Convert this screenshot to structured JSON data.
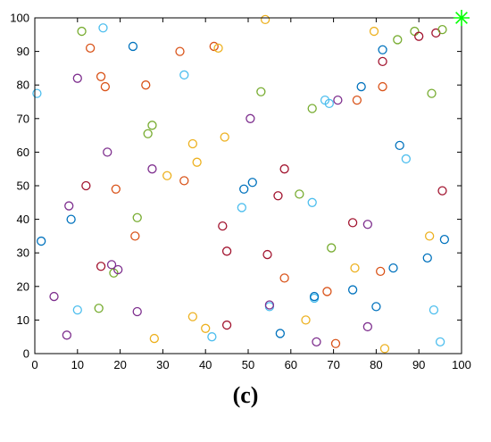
{
  "caption": "(c)",
  "chart_data": {
    "type": "scatter",
    "title": "",
    "xlabel": "",
    "ylabel": "",
    "xlim": [
      0,
      100
    ],
    "ylim": [
      0,
      100
    ],
    "xticks": [
      0,
      10,
      20,
      30,
      40,
      50,
      60,
      70,
      80,
      90,
      100
    ],
    "yticks": [
      0,
      10,
      20,
      30,
      40,
      50,
      60,
      70,
      80,
      90,
      100
    ],
    "grid": false,
    "marker": "open-circle",
    "palette": [
      "#0072BD",
      "#D95319",
      "#EDB120",
      "#7E2F8E",
      "#77AC30",
      "#4DBEEE",
      "#A2142F"
    ],
    "special_marker": {
      "x": 100,
      "y": 100,
      "symbol": "asterisk",
      "color": "#00FF00"
    },
    "points": [
      {
        "x": 0.5,
        "y": 77.5,
        "color": "#4DBEEE"
      },
      {
        "x": 1.5,
        "y": 33.5,
        "color": "#0072BD"
      },
      {
        "x": 4.5,
        "y": 17,
        "color": "#7E2F8E"
      },
      {
        "x": 7.5,
        "y": 5.5,
        "color": "#7E2F8E"
      },
      {
        "x": 8,
        "y": 44,
        "color": "#7E2F8E"
      },
      {
        "x": 8.5,
        "y": 40,
        "color": "#0072BD"
      },
      {
        "x": 10,
        "y": 82,
        "color": "#7E2F8E"
      },
      {
        "x": 10,
        "y": 13,
        "color": "#4DBEEE"
      },
      {
        "x": 11,
        "y": 96,
        "color": "#77AC30"
      },
      {
        "x": 12,
        "y": 50,
        "color": "#A2142F"
      },
      {
        "x": 13,
        "y": 91,
        "color": "#D95319"
      },
      {
        "x": 15,
        "y": 13.5,
        "color": "#77AC30"
      },
      {
        "x": 15.5,
        "y": 26,
        "color": "#A2142F"
      },
      {
        "x": 15.5,
        "y": 82.5,
        "color": "#D95319"
      },
      {
        "x": 16,
        "y": 97,
        "color": "#4DBEEE"
      },
      {
        "x": 16.5,
        "y": 79.5,
        "color": "#D95319"
      },
      {
        "x": 17,
        "y": 60,
        "color": "#7E2F8E"
      },
      {
        "x": 18,
        "y": 26.5,
        "color": "#7E2F8E"
      },
      {
        "x": 18.5,
        "y": 24,
        "color": "#77AC30"
      },
      {
        "x": 19,
        "y": 49,
        "color": "#D95319"
      },
      {
        "x": 19.5,
        "y": 25,
        "color": "#7E2F8E"
      },
      {
        "x": 23,
        "y": 91.5,
        "color": "#0072BD"
      },
      {
        "x": 23.5,
        "y": 35,
        "color": "#D95319"
      },
      {
        "x": 24,
        "y": 40.5,
        "color": "#77AC30"
      },
      {
        "x": 24,
        "y": 12.5,
        "color": "#7E2F8E"
      },
      {
        "x": 26,
        "y": 80,
        "color": "#D95319"
      },
      {
        "x": 26.5,
        "y": 65.5,
        "color": "#77AC30"
      },
      {
        "x": 27.5,
        "y": 68,
        "color": "#77AC30"
      },
      {
        "x": 27.5,
        "y": 55,
        "color": "#7E2F8E"
      },
      {
        "x": 28,
        "y": 4.5,
        "color": "#EDB120"
      },
      {
        "x": 31,
        "y": 53,
        "color": "#EDB120"
      },
      {
        "x": 34,
        "y": 90,
        "color": "#D95319"
      },
      {
        "x": 35,
        "y": 51.5,
        "color": "#D95319"
      },
      {
        "x": 35,
        "y": 83,
        "color": "#4DBEEE"
      },
      {
        "x": 37,
        "y": 62.5,
        "color": "#EDB120"
      },
      {
        "x": 37,
        "y": 11,
        "color": "#EDB120"
      },
      {
        "x": 38,
        "y": 57,
        "color": "#EDB120"
      },
      {
        "x": 40,
        "y": 7.5,
        "color": "#EDB120"
      },
      {
        "x": 41.5,
        "y": 5,
        "color": "#4DBEEE"
      },
      {
        "x": 42,
        "y": 91.5,
        "color": "#D95319"
      },
      {
        "x": 43,
        "y": 91,
        "color": "#EDB120"
      },
      {
        "x": 44,
        "y": 38,
        "color": "#A2142F"
      },
      {
        "x": 44.5,
        "y": 64.5,
        "color": "#EDB120"
      },
      {
        "x": 45,
        "y": 30.5,
        "color": "#A2142F"
      },
      {
        "x": 45,
        "y": 8.5,
        "color": "#A2142F"
      },
      {
        "x": 48.5,
        "y": 43.5,
        "color": "#4DBEEE"
      },
      {
        "x": 49,
        "y": 49,
        "color": "#0072BD"
      },
      {
        "x": 50.5,
        "y": 70,
        "color": "#7E2F8E"
      },
      {
        "x": 51,
        "y": 51,
        "color": "#0072BD"
      },
      {
        "x": 53,
        "y": 78,
        "color": "#77AC30"
      },
      {
        "x": 54,
        "y": 99.5,
        "color": "#EDB120"
      },
      {
        "x": 54.5,
        "y": 29.5,
        "color": "#A2142F"
      },
      {
        "x": 55,
        "y": 14,
        "color": "#4DBEEE"
      },
      {
        "x": 55,
        "y": 14.5,
        "color": "#7E2F8E"
      },
      {
        "x": 57,
        "y": 47,
        "color": "#A2142F"
      },
      {
        "x": 57.5,
        "y": 6,
        "color": "#0072BD"
      },
      {
        "x": 58.5,
        "y": 55,
        "color": "#A2142F"
      },
      {
        "x": 58.5,
        "y": 22.5,
        "color": "#D95319"
      },
      {
        "x": 62,
        "y": 47.5,
        "color": "#77AC30"
      },
      {
        "x": 63.5,
        "y": 10,
        "color": "#EDB120"
      },
      {
        "x": 65,
        "y": 73,
        "color": "#77AC30"
      },
      {
        "x": 65,
        "y": 45,
        "color": "#4DBEEE"
      },
      {
        "x": 65.5,
        "y": 16.5,
        "color": "#4DBEEE"
      },
      {
        "x": 65.5,
        "y": 17,
        "color": "#0072BD"
      },
      {
        "x": 66,
        "y": 3.5,
        "color": "#7E2F8E"
      },
      {
        "x": 68,
        "y": 75.5,
        "color": "#4DBEEE"
      },
      {
        "x": 68.5,
        "y": 18.5,
        "color": "#D95319"
      },
      {
        "x": 69,
        "y": 74.5,
        "color": "#4DBEEE"
      },
      {
        "x": 69.5,
        "y": 31.5,
        "color": "#77AC30"
      },
      {
        "x": 70.5,
        "y": 3,
        "color": "#D95319"
      },
      {
        "x": 71,
        "y": 75.5,
        "color": "#7E2F8E"
      },
      {
        "x": 74.5,
        "y": 39,
        "color": "#A2142F"
      },
      {
        "x": 74.5,
        "y": 19,
        "color": "#0072BD"
      },
      {
        "x": 75,
        "y": 25.5,
        "color": "#EDB120"
      },
      {
        "x": 75.5,
        "y": 75.5,
        "color": "#D95319"
      },
      {
        "x": 76.5,
        "y": 79.5,
        "color": "#0072BD"
      },
      {
        "x": 78,
        "y": 38.5,
        "color": "#7E2F8E"
      },
      {
        "x": 78,
        "y": 8,
        "color": "#7E2F8E"
      },
      {
        "x": 79.5,
        "y": 96,
        "color": "#EDB120"
      },
      {
        "x": 80,
        "y": 14,
        "color": "#0072BD"
      },
      {
        "x": 81,
        "y": 24.5,
        "color": "#D95319"
      },
      {
        "x": 81.5,
        "y": 90.5,
        "color": "#0072BD"
      },
      {
        "x": 81.5,
        "y": 87,
        "color": "#A2142F"
      },
      {
        "x": 81.5,
        "y": 79.5,
        "color": "#D95319"
      },
      {
        "x": 82,
        "y": 1.5,
        "color": "#EDB120"
      },
      {
        "x": 84,
        "y": 25.5,
        "color": "#0072BD"
      },
      {
        "x": 85,
        "y": 93.5,
        "color": "#77AC30"
      },
      {
        "x": 85.5,
        "y": 62,
        "color": "#0072BD"
      },
      {
        "x": 87,
        "y": 58,
        "color": "#4DBEEE"
      },
      {
        "x": 89,
        "y": 96,
        "color": "#77AC30"
      },
      {
        "x": 90,
        "y": 94.5,
        "color": "#A2142F"
      },
      {
        "x": 92,
        "y": 28.5,
        "color": "#0072BD"
      },
      {
        "x": 92.5,
        "y": 35,
        "color": "#EDB120"
      },
      {
        "x": 93,
        "y": 77.5,
        "color": "#77AC30"
      },
      {
        "x": 93.5,
        "y": 13,
        "color": "#4DBEEE"
      },
      {
        "x": 94,
        "y": 95.5,
        "color": "#A2142F"
      },
      {
        "x": 95,
        "y": 3.5,
        "color": "#4DBEEE"
      },
      {
        "x": 95.5,
        "y": 96.5,
        "color": "#77AC30"
      },
      {
        "x": 95.5,
        "y": 48.5,
        "color": "#A2142F"
      },
      {
        "x": 96,
        "y": 34,
        "color": "#0072BD"
      }
    ]
  }
}
